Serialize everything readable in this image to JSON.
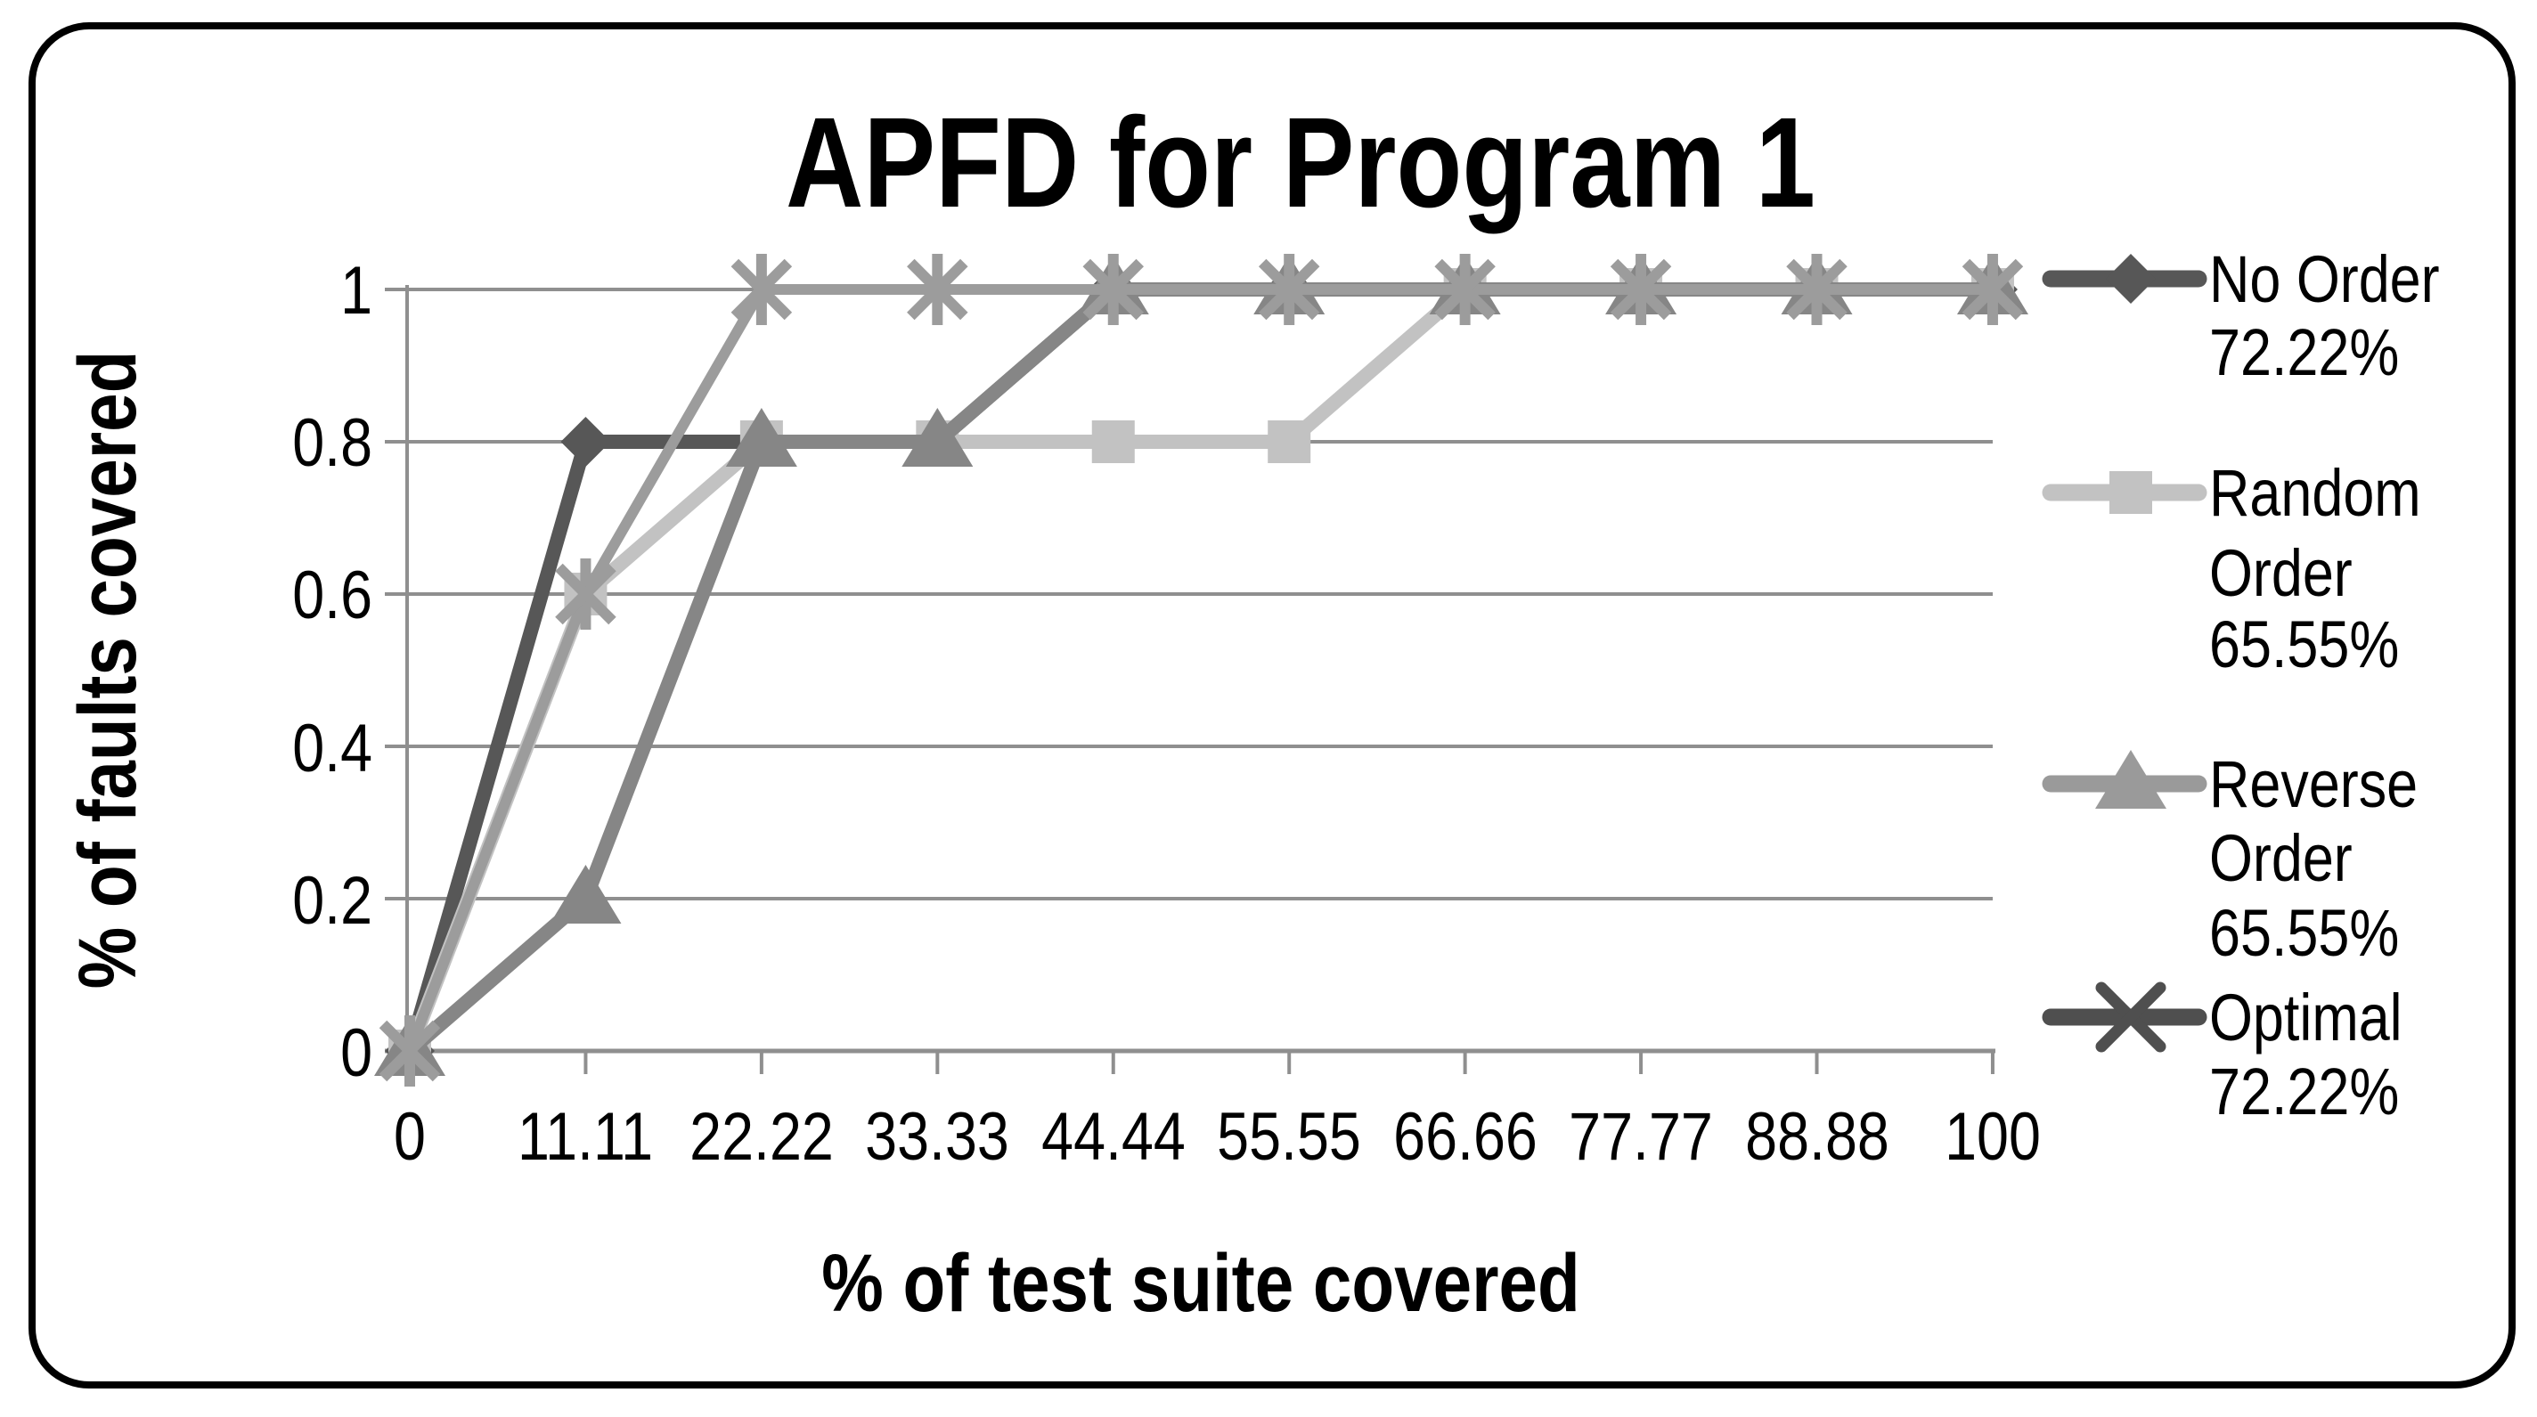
{
  "title": "APFD for Program 1",
  "y_axis": {
    "title": "% of faults covered",
    "ticks": [
      "1",
      "0.8",
      "0.6",
      "0.4",
      "0.2",
      "0"
    ],
    "tick_values": [
      1,
      0.8,
      0.6,
      0.4,
      0.2,
      0
    ]
  },
  "x_axis": {
    "title": "% of test suite covered",
    "ticks": [
      "0",
      "11.11",
      "22.22",
      "33.33",
      "44.44",
      "55.55",
      "66.66",
      "77.77",
      "88.88",
      "100"
    ]
  },
  "legend": {
    "position": "right",
    "entries": [
      {
        "lines": [
          "No Order",
          "72.22%"
        ],
        "marker": "diamond",
        "color": "#575757"
      },
      {
        "lines": [
          "Random",
          "Order",
          "65.55%"
        ],
        "marker": "square",
        "color": "#c2c2c2"
      },
      {
        "lines": [
          "Reverse",
          "Order",
          "65.55%"
        ],
        "marker": "triangle",
        "color": "#9a9a9a"
      },
      {
        "lines": [
          "Optimal",
          "72.22%"
        ],
        "marker": "x",
        "color": "#4f4f4f"
      }
    ]
  },
  "chart_data": {
    "type": "line",
    "title": "APFD for Program 1",
    "xlabel": "% of test suite covered",
    "ylabel": "% of faults covered",
    "categories": [
      "0",
      "11.11",
      "22.22",
      "33.33",
      "44.44",
      "55.55",
      "66.66",
      "77.77",
      "88.88",
      "100"
    ],
    "ylim": [
      0,
      1
    ],
    "ytick_values": [
      0,
      0.2,
      0.4,
      0.6,
      0.8,
      1
    ],
    "grid": "horizontal",
    "legend_position": "right",
    "series": [
      {
        "name": "No Order",
        "apfd": "72.22%",
        "marker": "diamond",
        "color": "#575757",
        "values": [
          0,
          0.8,
          0.8,
          0.8,
          1,
          1,
          1,
          1,
          1,
          1
        ]
      },
      {
        "name": "Random Order",
        "apfd": "65.55%",
        "marker": "square",
        "color": "#c2c2c2",
        "values": [
          0,
          0.6,
          0.8,
          0.8,
          0.8,
          0.8,
          1,
          1,
          1,
          1
        ]
      },
      {
        "name": "Reverse Order",
        "apfd": "65.55%",
        "marker": "triangle",
        "color": "#868686",
        "values": [
          0,
          0.2,
          0.8,
          0.8,
          1,
          1,
          1,
          1,
          1,
          1
        ]
      },
      {
        "name": "Optimal",
        "apfd": "72.22%",
        "marker": "star",
        "color": "#9c9c9c",
        "values": [
          0,
          0.6,
          1,
          1,
          1,
          1,
          1,
          1,
          1,
          1
        ]
      }
    ],
    "grid_color": "#8f8f8f",
    "border_color": "#000000"
  }
}
